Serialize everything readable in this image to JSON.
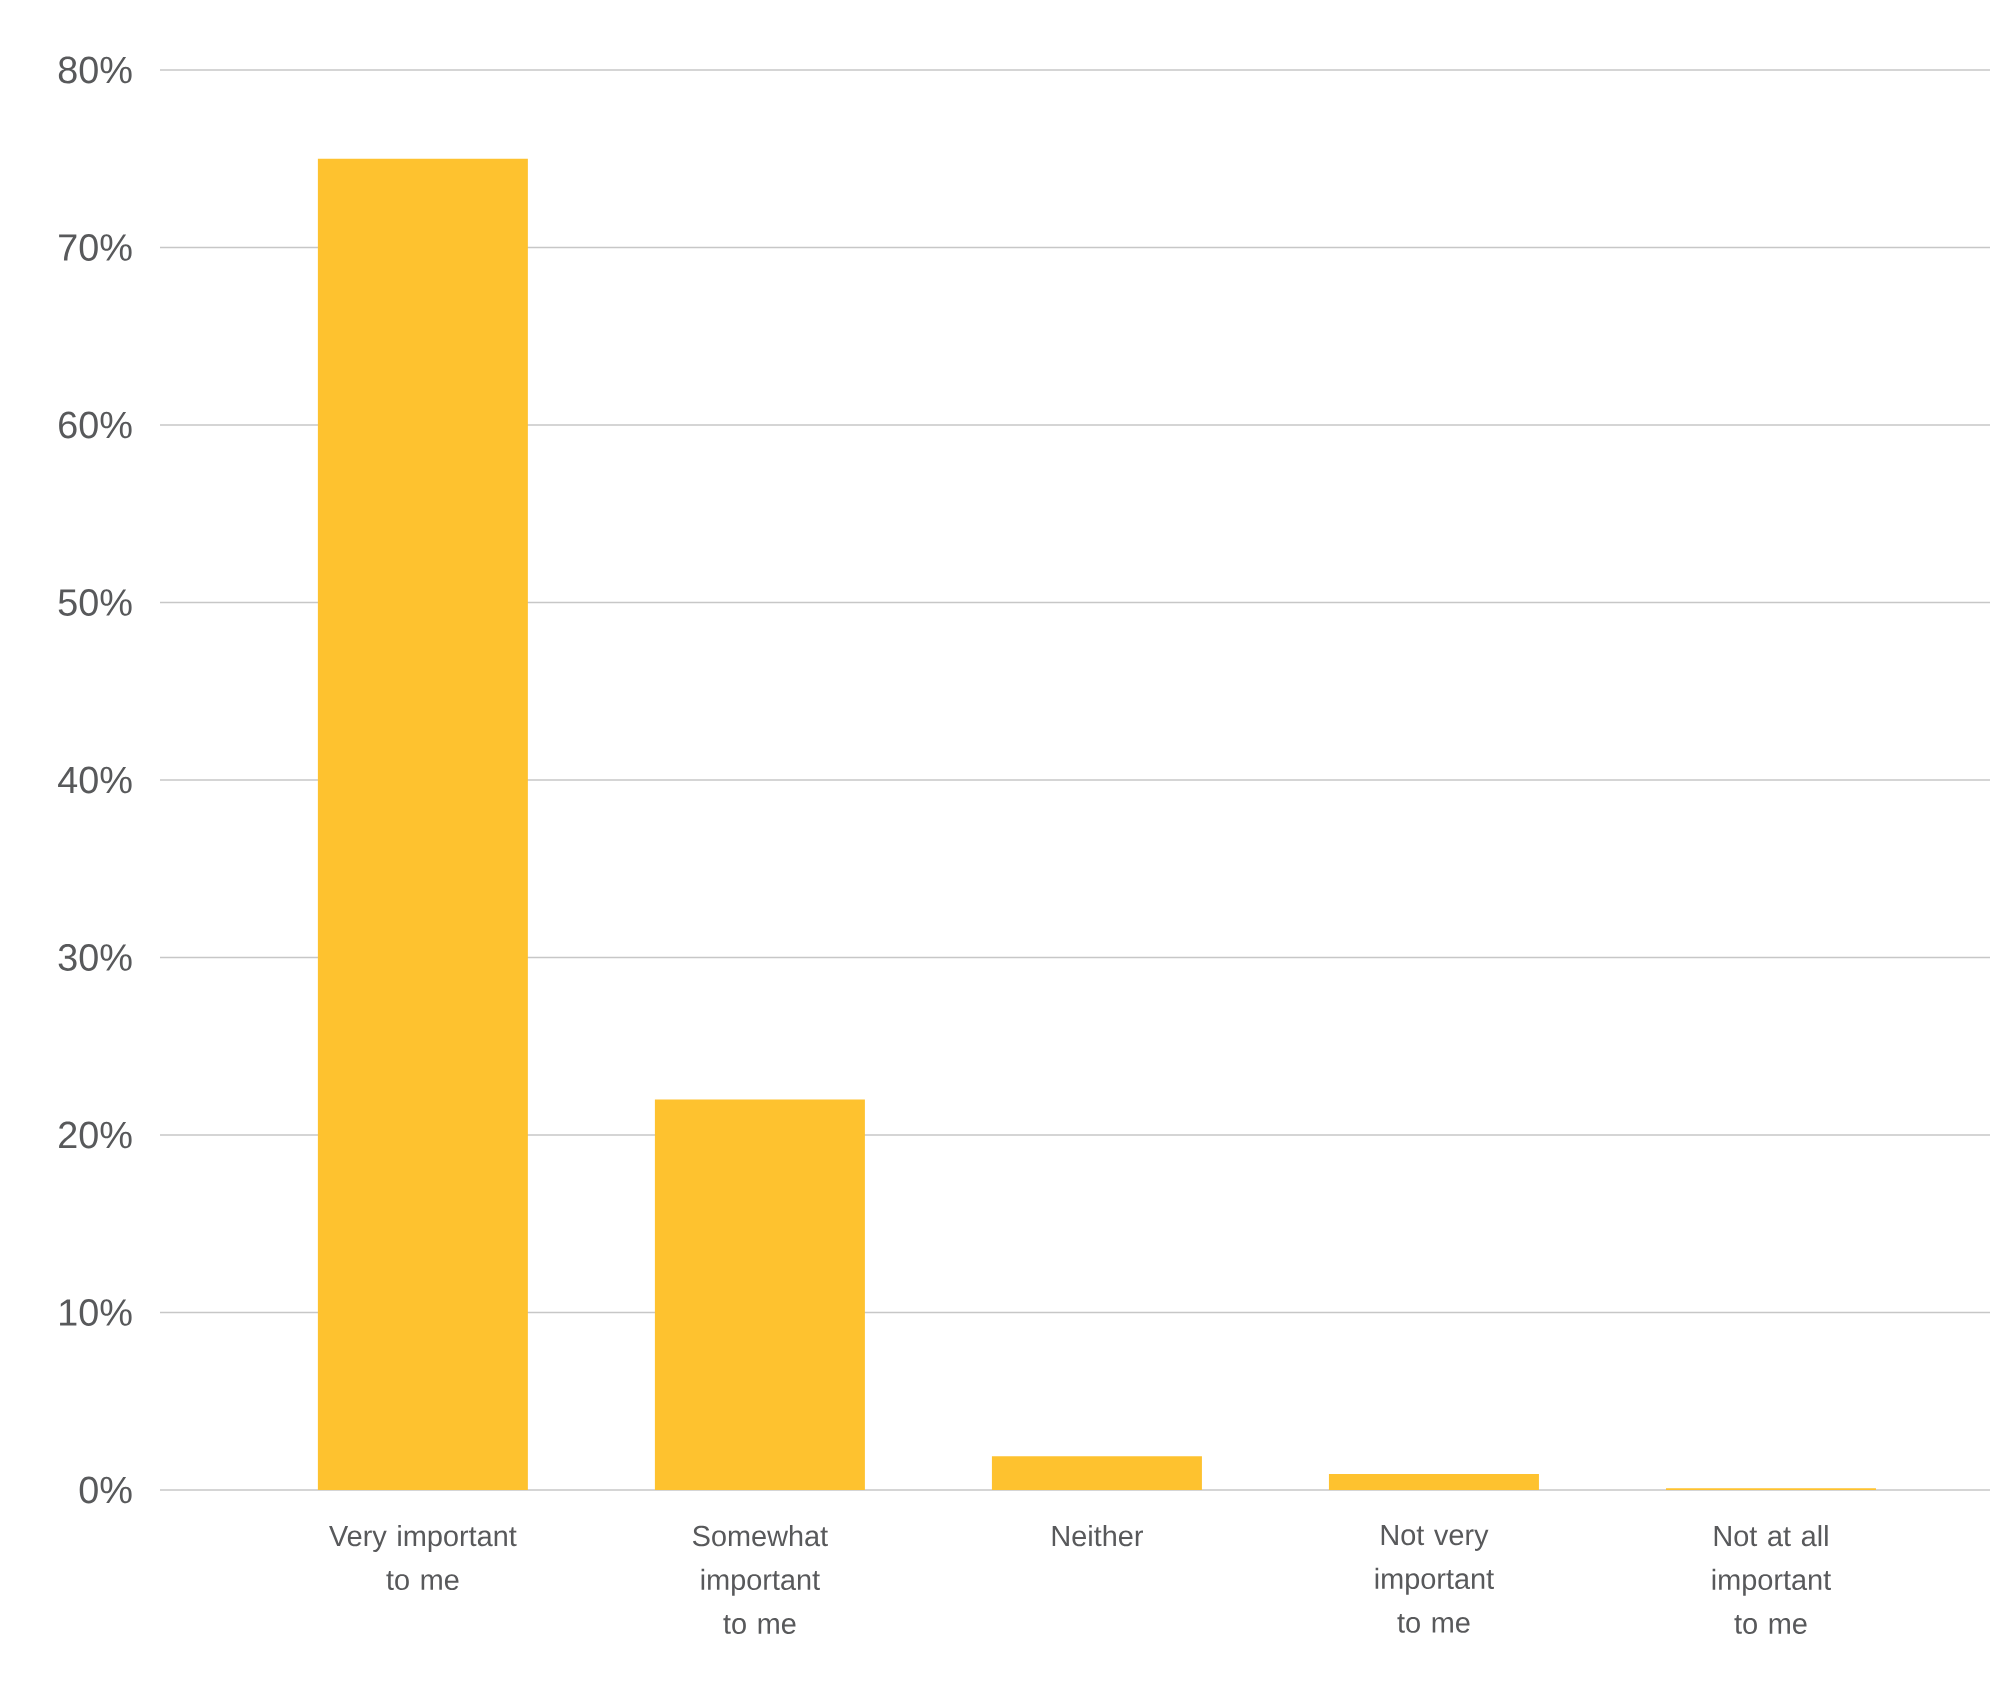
{
  "chart_data": {
    "type": "bar",
    "categories": [
      "Very important to me",
      "Somewhat important to me",
      "Neither",
      "Not very important to me",
      "Not at all important to me"
    ],
    "values": [
      75,
      22,
      1.9,
      0.9,
      0.1
    ],
    "color": "#fec22f",
    "ylim": [
      0,
      80
    ],
    "yticks": [
      {
        "value": 0,
        "label": "0%"
      },
      {
        "value": 10,
        "label": "10%"
      },
      {
        "value": 20,
        "label": "20%"
      },
      {
        "value": 30,
        "label": "30%"
      },
      {
        "value": 40,
        "label": "40%"
      },
      {
        "value": 50,
        "label": "50%"
      },
      {
        "value": 60,
        "label": "60%"
      },
      {
        "value": 70,
        "label": "70%"
      },
      {
        "value": 80,
        "label": "80%"
      }
    ],
    "grid": "y"
  }
}
